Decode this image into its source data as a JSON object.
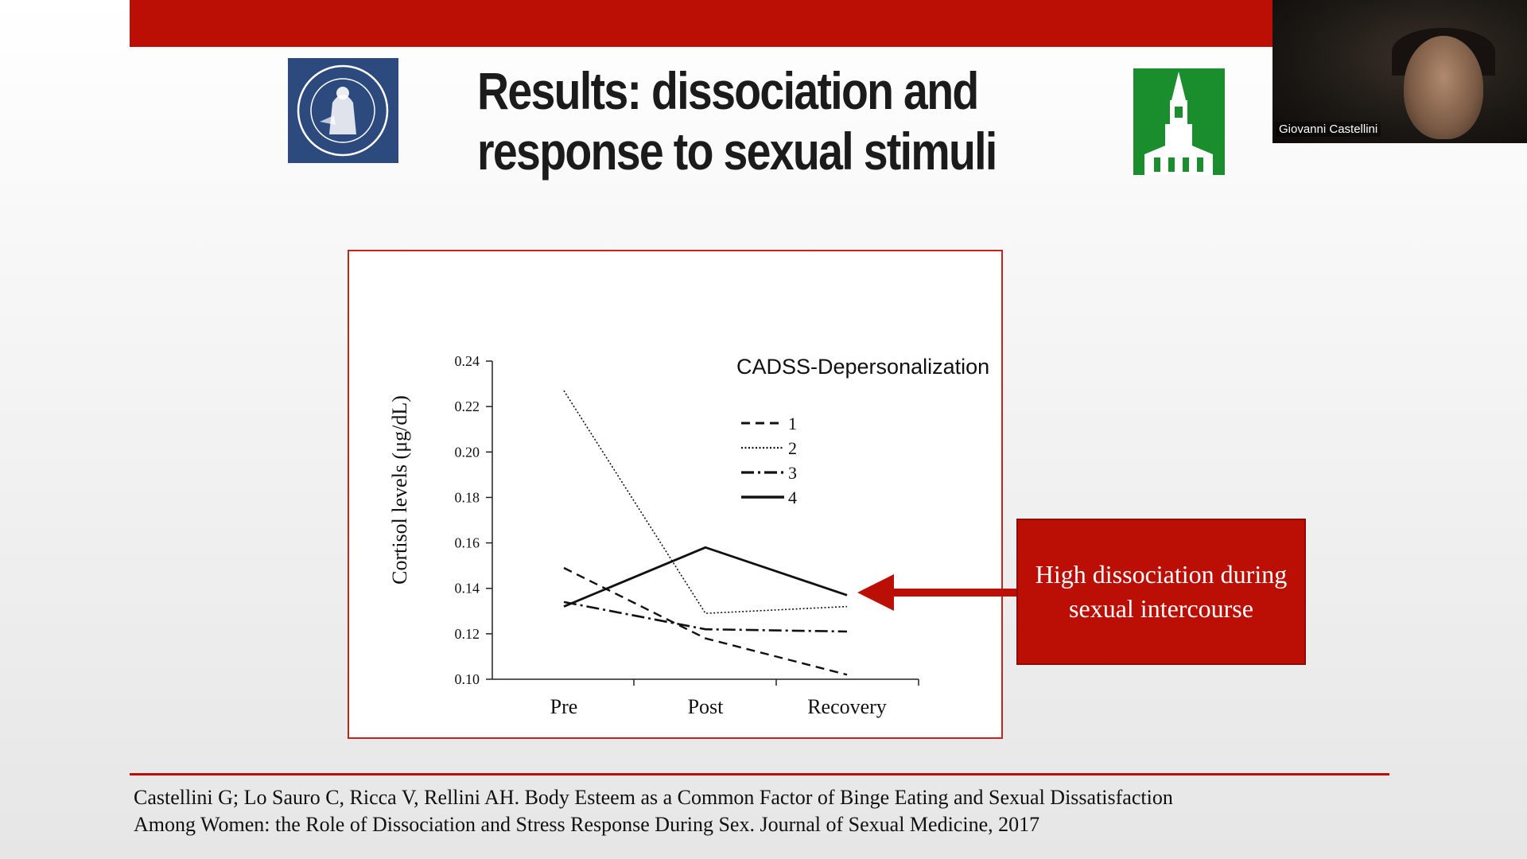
{
  "slide": {
    "title_line1": "Results: dissociation and",
    "title_line2": "response to sexual stimuli",
    "callout": "High dissociation during sexual intercourse",
    "reference_line1": "Castellini G; Lo Sauro C, Ricca V, Rellini AH. Body Esteem as a Common Factor of Binge Eating and Sexual Dissatisfaction",
    "reference_line2": "Among Women: the Role of Dissociation and Stress Response During Sex. Journal of Sexual Medicine, 2017",
    "colors": {
      "accent_red": "#bb0f06",
      "left_logo_blue": "#2c4a7d",
      "right_logo_green": "#1a8d2c"
    },
    "left_logo_icon": "university-seal-icon",
    "right_logo_icon": "clock-tower-icon"
  },
  "video": {
    "participant_name": "Giovanni Castellini"
  },
  "chart_data": {
    "type": "line",
    "categories": [
      "Pre",
      "Post",
      "Recovery"
    ],
    "ylabel": "Cortisol levels (μg/dL)",
    "legend_title": "CADSS-Depersonalization",
    "legend_placement": "top-right",
    "ylim": [
      0.1,
      0.24
    ],
    "yticks": [
      "0.24",
      "0.22",
      "0.20",
      "0.18",
      "0.16",
      "0.14",
      "0.12",
      "0.10"
    ],
    "grid": false,
    "series": [
      {
        "name": "1",
        "style": "dashed",
        "values": [
          0.149,
          0.118,
          0.102
        ]
      },
      {
        "name": "2",
        "style": "dotted",
        "values": [
          0.227,
          0.129,
          0.132
        ]
      },
      {
        "name": "3",
        "style": "dash-dot",
        "values": [
          0.134,
          0.122,
          0.121
        ]
      },
      {
        "name": "4",
        "style": "solid",
        "values": [
          0.132,
          0.158,
          0.137
        ]
      }
    ]
  }
}
